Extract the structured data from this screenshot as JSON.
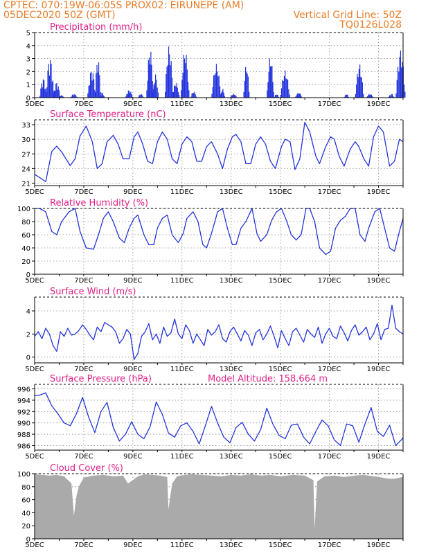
{
  "header": {
    "line1": "CPTEC:    070:19W-06:05S    PROX02: EIRUNEPE (AM)",
    "line2_left": "05DEC2020 50Z (GMT)",
    "line2_right": "Vertical Grid Line: 50Z",
    "line3_right": "TQ0126L028"
  },
  "colors": {
    "header": "#e87d28",
    "title": "#e0208a",
    "series": "#2233dd",
    "cloud": "#aaaaaa",
    "axis": "#000000",
    "grid": "#888888"
  },
  "chart_data": [
    {
      "type": "bar",
      "title": "Precipitation (mm/h)",
      "ylim": [
        0,
        5
      ],
      "yticks": [
        0,
        1,
        2,
        3,
        4,
        5
      ],
      "xlim": [
        0,
        15
      ],
      "xticks": [
        0,
        2,
        4,
        6,
        8,
        10,
        12,
        14
      ],
      "xtick_labels": [
        "5DEC",
        "7DEC",
        "9DEC",
        "11DEC",
        "13DEC",
        "15DEC",
        "17DEC",
        "19DEC"
      ],
      "grid": true,
      "events": [
        [
          0.2,
          0.3,
          1.5
        ],
        [
          0.45,
          0.35,
          3.1
        ],
        [
          0.75,
          0.3,
          1.2
        ],
        [
          1.0,
          0.2,
          0.2
        ],
        [
          1.45,
          0.3,
          0.3
        ],
        [
          2.15,
          0.35,
          2.2
        ],
        [
          2.45,
          0.25,
          3.1
        ],
        [
          2.65,
          0.2,
          0.4
        ],
        [
          3.7,
          0.3,
          0.6
        ],
        [
          4.2,
          0.25,
          0.3
        ],
        [
          4.55,
          0.3,
          3.8
        ],
        [
          4.8,
          0.25,
          1.8
        ],
        [
          5.3,
          0.35,
          4.0
        ],
        [
          5.6,
          0.3,
          1.2
        ],
        [
          5.95,
          0.35,
          3.7
        ],
        [
          6.35,
          0.25,
          0.5
        ],
        [
          7.2,
          0.4,
          2.6
        ],
        [
          7.55,
          0.2,
          0.7
        ],
        [
          7.95,
          0.3,
          0.3
        ],
        [
          8.5,
          0.25,
          2.6
        ],
        [
          9.45,
          0.3,
          3.2
        ],
        [
          9.75,
          0.2,
          0.3
        ],
        [
          10.0,
          0.4,
          2.1
        ],
        [
          10.6,
          0.3,
          0.4
        ],
        [
          12.6,
          0.2,
          0.3
        ],
        [
          13.05,
          0.35,
          2.6
        ],
        [
          13.5,
          0.3,
          0.3
        ],
        [
          14.4,
          0.25,
          0.3
        ],
        [
          14.7,
          0.4,
          3.7
        ]
      ]
    },
    {
      "type": "line",
      "title": "Surface Temperature (nC)",
      "ylim": [
        20.5,
        34
      ],
      "yticks": [
        21,
        24,
        27,
        30,
        33
      ],
      "xlim": [
        0,
        15
      ],
      "xticks": [
        0,
        2,
        4,
        6,
        8,
        10,
        12,
        14
      ],
      "xtick_labels": [
        "5DEC",
        "7DEC",
        "9DEC",
        "11DEC",
        "13DEC",
        "15DEC",
        "17DEC",
        "19DEC"
      ],
      "grid": true,
      "x": [
        0,
        0.25,
        0.45,
        0.7,
        0.9,
        1.1,
        1.45,
        1.65,
        1.85,
        2.1,
        2.35,
        2.55,
        2.75,
        2.95,
        3.2,
        3.4,
        3.6,
        3.85,
        4.05,
        4.2,
        4.4,
        4.6,
        4.8,
        5.0,
        5.2,
        5.4,
        5.6,
        5.8,
        6.0,
        6.2,
        6.4,
        6.6,
        6.8,
        7.0,
        7.2,
        7.45,
        7.65,
        7.85,
        8.05,
        8.2,
        8.4,
        8.6,
        8.8,
        9.0,
        9.2,
        9.4,
        9.6,
        9.8,
        10.05,
        10.2,
        10.4,
        10.6,
        10.8,
        11.0,
        11.2,
        11.45,
        11.6,
        11.85,
        12.05,
        12.2,
        12.4,
        12.6,
        12.85,
        13.05,
        13.2,
        13.4,
        13.6,
        13.8,
        14.0,
        14.2,
        14.45,
        14.65,
        14.85,
        15.0
      ],
      "y": [
        22.8,
        22.0,
        21.3,
        27.5,
        28.6,
        27.4,
        24.6,
        26.0,
        30.7,
        32.7,
        29.5,
        24.0,
        25.0,
        29.5,
        30.8,
        29.0,
        26.0,
        26.0,
        30.5,
        31.5,
        29.0,
        25.5,
        25.0,
        29.5,
        31.5,
        30.0,
        26.0,
        25.0,
        29.0,
        30.5,
        29.5,
        25.5,
        25.5,
        28.5,
        29.5,
        27.0,
        24.0,
        28.0,
        30.5,
        31.0,
        29.5,
        25.0,
        25.0,
        29.0,
        30.5,
        29.0,
        25.5,
        24.0,
        28.5,
        30.0,
        29.5,
        23.8,
        26.0,
        33.5,
        31.5,
        26.5,
        25.0,
        28.5,
        30.5,
        30.0,
        26.5,
        24.5,
        28.0,
        29.5,
        28.5,
        26.0,
        24.5,
        30.5,
        32.7,
        31.5,
        24.5,
        25.5,
        30.0,
        29.5
      ]
    },
    {
      "type": "line",
      "title": "Relative Humidity (%)",
      "ylim": [
        0,
        100
      ],
      "yticks": [
        0,
        20,
        40,
        60,
        80,
        100
      ],
      "xlim": [
        0,
        15
      ],
      "xticks": [
        0,
        2,
        4,
        6,
        8,
        10,
        12,
        14
      ],
      "xtick_labels": [
        "5DEC",
        "7DEC",
        "9DEC",
        "11DEC",
        "13DEC",
        "15DEC",
        "17DEC",
        "19DEC"
      ],
      "grid": true,
      "x": [
        0,
        0.2,
        0.45,
        0.7,
        0.9,
        1.1,
        1.4,
        1.65,
        1.85,
        2.1,
        2.4,
        2.6,
        2.8,
        3.0,
        3.2,
        3.45,
        3.65,
        3.85,
        4.05,
        4.2,
        4.45,
        4.65,
        4.85,
        5.0,
        5.2,
        5.4,
        5.6,
        5.85,
        6.05,
        6.2,
        6.45,
        6.65,
        6.85,
        7.0,
        7.2,
        7.45,
        7.65,
        7.85,
        8.05,
        8.2,
        8.4,
        8.6,
        8.85,
        9.05,
        9.2,
        9.45,
        9.65,
        9.85,
        10.05,
        10.25,
        10.45,
        10.65,
        10.85,
        11.05,
        11.2,
        11.4,
        11.6,
        11.85,
        12.05,
        12.25,
        12.45,
        12.65,
        12.85,
        13.05,
        13.25,
        13.45,
        13.6,
        13.85,
        14.05,
        14.25,
        14.45,
        14.65,
        14.85,
        15.0
      ],
      "y": [
        100,
        100,
        95,
        65,
        60,
        80,
        95,
        100,
        65,
        40,
        38,
        60,
        85,
        95,
        80,
        55,
        48,
        70,
        85,
        90,
        60,
        45,
        45,
        70,
        85,
        90,
        60,
        48,
        62,
        85,
        95,
        80,
        45,
        40,
        62,
        95,
        100,
        70,
        45,
        45,
        70,
        80,
        100,
        62,
        50,
        60,
        82,
        95,
        100,
        82,
        60,
        52,
        60,
        100,
        100,
        80,
        40,
        30,
        35,
        70,
        82,
        88,
        100,
        100,
        60,
        50,
        70,
        95,
        100,
        70,
        40,
        35,
        65,
        85
      ]
    },
    {
      "type": "line",
      "title": "Surface Wind (m/s)",
      "ylim": [
        -0.5,
        5.2
      ],
      "yticks": [
        0,
        2,
        4
      ],
      "xlim": [
        0,
        15
      ],
      "xticks": [
        0,
        2,
        4,
        6,
        8,
        10,
        12,
        14
      ],
      "xtick_labels": [
        "5DEC",
        "7DEC",
        "9DEC",
        "11DEC",
        "13DEC",
        "15DEC",
        "17DEC",
        "19DEC"
      ],
      "grid": true,
      "x": [
        0,
        0.15,
        0.3,
        0.45,
        0.6,
        0.75,
        0.9,
        1.05,
        1.2,
        1.35,
        1.5,
        1.65,
        1.8,
        1.95,
        2.1,
        2.25,
        2.4,
        2.55,
        2.7,
        2.85,
        3.0,
        3.15,
        3.3,
        3.45,
        3.6,
        3.75,
        3.9,
        4.05,
        4.2,
        4.35,
        4.5,
        4.65,
        4.8,
        4.95,
        5.1,
        5.25,
        5.4,
        5.55,
        5.7,
        5.85,
        6.0,
        6.15,
        6.3,
        6.45,
        6.6,
        6.75,
        6.9,
        7.05,
        7.2,
        7.35,
        7.5,
        7.65,
        7.8,
        7.95,
        8.1,
        8.25,
        8.4,
        8.55,
        8.7,
        8.85,
        9.0,
        9.15,
        9.3,
        9.45,
        9.6,
        9.75,
        9.9,
        10.05,
        10.2,
        10.35,
        10.5,
        10.65,
        10.8,
        10.95,
        11.1,
        11.25,
        11.4,
        11.55,
        11.7,
        11.85,
        12.0,
        12.15,
        12.3,
        12.45,
        12.6,
        12.75,
        12.9,
        13.05,
        13.2,
        13.35,
        13.5,
        13.65,
        13.8,
        13.95,
        14.1,
        14.25,
        14.4,
        14.55,
        14.7,
        14.85,
        15.0
      ],
      "y": [
        1.8,
        2.2,
        1.6,
        2.5,
        2.0,
        1.0,
        0.5,
        2.2,
        1.8,
        2.5,
        1.9,
        2.0,
        2.3,
        2.8,
        2.4,
        1.9,
        1.5,
        2.6,
        2.2,
        3.0,
        2.8,
        2.6,
        2.2,
        1.2,
        1.6,
        2.4,
        2.0,
        -0.2,
        0.3,
        1.8,
        2.2,
        2.9,
        1.5,
        2.0,
        1.2,
        2.6,
        1.8,
        2.1,
        3.3,
        2.0,
        1.6,
        2.8,
        2.3,
        1.2,
        2.0,
        1.5,
        1.0,
        2.4,
        1.9,
        2.2,
        2.8,
        1.6,
        1.3,
        2.2,
        2.6,
        2.0,
        1.4,
        2.3,
        1.9,
        1.0,
        2.1,
        2.4,
        1.5,
        2.0,
        2.7,
        1.8,
        0.8,
        2.3,
        1.6,
        1.0,
        2.2,
        2.5,
        1.9,
        1.3,
        2.4,
        2.0,
        1.7,
        2.6,
        1.2,
        2.0,
        2.5,
        1.8,
        1.6,
        2.7,
        2.1,
        1.4,
        2.3,
        2.8,
        1.9,
        2.2,
        2.6,
        1.5,
        2.0,
        2.9,
        1.5,
        2.4,
        2.5,
        4.5,
        2.5,
        2.2,
        2.0
      ]
    },
    {
      "type": "line",
      "title": "Surface Pressure (hPa)",
      "annotation": "Model Altitude: 158.664 m",
      "ylim": [
        985.2,
        996.8
      ],
      "yticks": [
        986,
        988,
        990,
        992,
        994,
        996
      ],
      "xlim": [
        0,
        15
      ],
      "xticks": [
        0,
        2,
        4,
        6,
        8,
        10,
        12,
        14
      ],
      "xtick_labels": [
        "5DEC",
        "7DEC",
        "9DEC",
        "11DEC",
        "13DEC",
        "15DEC",
        "17DEC",
        "19DEC"
      ],
      "grid": true,
      "x": [
        0,
        0.2,
        0.45,
        0.7,
        0.95,
        1.2,
        1.45,
        1.7,
        1.95,
        2.2,
        2.45,
        2.7,
        2.95,
        3.2,
        3.45,
        3.7,
        3.95,
        4.2,
        4.45,
        4.7,
        4.95,
        5.2,
        5.45,
        5.7,
        5.95,
        6.2,
        6.45,
        6.7,
        6.95,
        7.2,
        7.45,
        7.7,
        7.95,
        8.2,
        8.45,
        8.7,
        8.95,
        9.2,
        9.45,
        9.7,
        9.95,
        10.2,
        10.45,
        10.7,
        10.95,
        11.2,
        11.45,
        11.7,
        11.95,
        12.2,
        12.45,
        12.7,
        12.95,
        13.2,
        13.45,
        13.7,
        13.95,
        14.2,
        14.45,
        14.7,
        14.95,
        15.0
      ],
      "y": [
        994.8,
        994.9,
        995.3,
        993.0,
        991.6,
        990.0,
        989.5,
        991.6,
        994.5,
        991.0,
        988.3,
        992.0,
        993.6,
        989.2,
        986.8,
        988.0,
        990.2,
        988.0,
        987.2,
        989.3,
        993.7,
        991.5,
        988.2,
        987.5,
        989.5,
        990.0,
        988.5,
        986.3,
        989.5,
        992.9,
        990.0,
        987.5,
        986.5,
        989.2,
        990.1,
        988.0,
        986.8,
        988.8,
        992.6,
        989.8,
        987.8,
        987.2,
        989.6,
        989.8,
        987.5,
        986.3,
        988.5,
        990.5,
        989.5,
        987.0,
        986.0,
        989.8,
        989.5,
        986.6,
        989.8,
        992.7,
        988.5,
        987.6,
        989.6,
        986.0,
        987.1,
        987.4
      ]
    },
    {
      "type": "area",
      "title": "Cloud Cover (%)",
      "ylim": [
        0,
        100
      ],
      "yticks": [
        0,
        20,
        40,
        60,
        80,
        100
      ],
      "xlim": [
        0,
        15
      ],
      "xticks": [
        0,
        2,
        4,
        6,
        8,
        10,
        12,
        14
      ],
      "xtick_labels": [
        "5DEC",
        "7DEC",
        "9DEC",
        "11DEC",
        "13DEC",
        "15DEC",
        "17DEC",
        "19DEC"
      ],
      "grid": true,
      "x": [
        0,
        0.3,
        0.6,
        0.9,
        1.2,
        1.5,
        1.6,
        1.7,
        1.8,
        2.0,
        2.4,
        2.8,
        3.2,
        3.6,
        3.8,
        4.0,
        4.2,
        4.5,
        4.8,
        5.1,
        5.4,
        5.45,
        5.5,
        5.6,
        5.8,
        6.1,
        6.4,
        6.8,
        7.2,
        7.6,
        8.0,
        8.4,
        8.8,
        9.2,
        9.6,
        10.0,
        10.5,
        11.0,
        11.35,
        11.4,
        11.5,
        11.8,
        12.2,
        12.6,
        13.0,
        13.4,
        13.8,
        14.0,
        14.3,
        14.6,
        15.0
      ],
      "y": [
        99,
        98,
        97,
        98,
        96,
        85,
        35,
        65,
        80,
        94,
        97,
        98,
        96,
        97,
        85,
        90,
        96,
        99,
        98,
        97,
        95,
        45,
        60,
        85,
        96,
        98,
        99,
        98,
        97,
        96,
        98,
        97,
        99,
        97,
        98,
        96,
        98,
        97,
        90,
        15,
        88,
        96,
        97,
        95,
        97,
        98,
        96,
        95,
        93,
        92,
        95
      ]
    }
  ]
}
